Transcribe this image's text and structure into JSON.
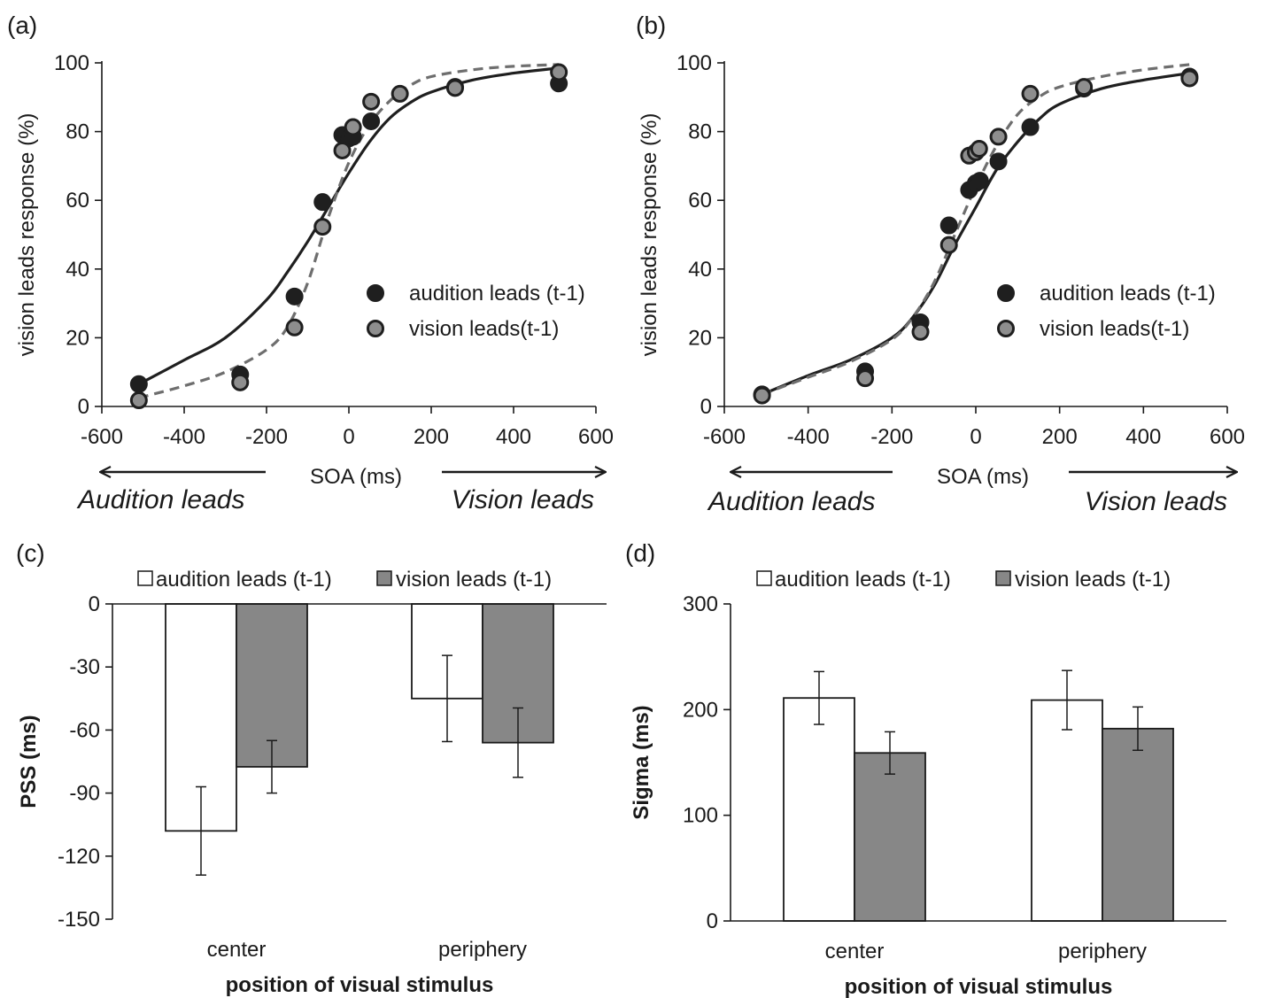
{
  "chart_data": [
    {
      "panel": "(a)",
      "type": "scatter",
      "xlabel": "SOA  (ms)",
      "ylabel": "vision  leads  response  (%)",
      "xlim": [
        -600,
        600
      ],
      "ylim": [
        0,
        100
      ],
      "xticks": [
        "-600",
        "-400",
        "-200",
        "0",
        "200",
        "400",
        "600"
      ],
      "yticks": [
        "0",
        "20",
        "40",
        "60",
        "80",
        "100"
      ],
      "direction_left": "Audition leads",
      "direction_right": "Vision leads",
      "legend_position": "right",
      "series": [
        {
          "name": "audition leads (t-1)",
          "color": "#222222",
          "fit_style": "solid",
          "points": [
            [
              -510,
              6.5
            ],
            [
              -264,
              9.3
            ],
            [
              -132,
              32
            ],
            [
              -64,
              59.5
            ],
            [
              -16,
              79
            ],
            [
              0,
              78
            ],
            [
              10,
              78.5
            ],
            [
              54,
              83
            ],
            [
              258,
              93
            ],
            [
              510,
              94
            ]
          ],
          "fit": [
            [
              -510,
              6.5
            ],
            [
              -400,
              13.5
            ],
            [
              -300,
              20
            ],
            [
              -200,
              31
            ],
            [
              -150,
              39
            ],
            [
              -100,
              48
            ],
            [
              -50,
              58
            ],
            [
              0,
              68
            ],
            [
              50,
              77
            ],
            [
              100,
              84
            ],
            [
              150,
              88.5
            ],
            [
              200,
              91.5
            ],
            [
              300,
              95
            ],
            [
              400,
              97
            ],
            [
              510,
              98.5
            ]
          ]
        },
        {
          "name": "vision leads(t-1)",
          "color": "#8a8a8a",
          "fit_style": "dashed",
          "points": [
            [
              -510,
              1.8
            ],
            [
              -264,
              7
            ],
            [
              -132,
              23
            ],
            [
              -64,
              52.3
            ],
            [
              -16,
              74.5
            ],
            [
              10,
              81.3
            ],
            [
              54,
              88.7
            ],
            [
              124,
              91
            ],
            [
              258,
              92.7
            ],
            [
              510,
              97.3
            ]
          ],
          "fit": [
            [
              -510,
              2.5
            ],
            [
              -400,
              6
            ],
            [
              -300,
              10
            ],
            [
              -200,
              16.5
            ],
            [
              -150,
              23
            ],
            [
              -100,
              36
            ],
            [
              -50,
              55
            ],
            [
              0,
              71
            ],
            [
              50,
              82
            ],
            [
              100,
              89
            ],
            [
              150,
              93.5
            ],
            [
              200,
              96
            ],
            [
              300,
              98
            ],
            [
              400,
              99
            ],
            [
              510,
              99.5
            ]
          ]
        }
      ]
    },
    {
      "panel": "(b)",
      "type": "scatter",
      "xlabel": "SOA  (ms)",
      "ylabel": "vision  leads  response  (%)",
      "xlim": [
        -600,
        600
      ],
      "ylim": [
        0,
        100
      ],
      "xticks": [
        "-600",
        "-400",
        "-200",
        "0",
        "200",
        "400",
        "600"
      ],
      "yticks": [
        "0",
        "20",
        "40",
        "60",
        "80",
        "100"
      ],
      "direction_left": "Audition leads",
      "direction_right": "Vision leads",
      "legend_position": "right",
      "series": [
        {
          "name": "audition leads (t-1)",
          "color": "#222222",
          "fit_style": "solid",
          "points": [
            [
              -510,
              3.5
            ],
            [
              -264,
              10.2
            ],
            [
              -132,
              24.5
            ],
            [
              -64,
              52.7
            ],
            [
              -16,
              63
            ],
            [
              0,
              65
            ],
            [
              10,
              65.7
            ],
            [
              54,
              71.3
            ],
            [
              130,
              81.3
            ],
            [
              258,
              92.5
            ],
            [
              510,
              96
            ]
          ],
          "fit": [
            [
              -510,
              3.5
            ],
            [
              -400,
              9
            ],
            [
              -300,
              13.5
            ],
            [
              -200,
              20
            ],
            [
              -150,
              26
            ],
            [
              -100,
              35
            ],
            [
              -50,
              47
            ],
            [
              0,
              58
            ],
            [
              50,
              69
            ],
            [
              100,
              77
            ],
            [
              150,
              83.5
            ],
            [
              200,
              88
            ],
            [
              300,
              92.5
            ],
            [
              400,
              95
            ],
            [
              510,
              97
            ]
          ]
        },
        {
          "name": "vision leads(t-1)",
          "color": "#8a8a8a",
          "fit_style": "dashed",
          "points": [
            [
              -510,
              3.2
            ],
            [
              -264,
              8.2
            ],
            [
              -132,
              21.7
            ],
            [
              -64,
              47
            ],
            [
              -16,
              73
            ],
            [
              0,
              74
            ],
            [
              8,
              75
            ],
            [
              54,
              78.5
            ],
            [
              130,
              91
            ],
            [
              258,
              93
            ],
            [
              510,
              95.5
            ]
          ],
          "fit": [
            [
              -510,
              3.5
            ],
            [
              -400,
              8.5
            ],
            [
              -300,
              13
            ],
            [
              -200,
              19.5
            ],
            [
              -150,
              26
            ],
            [
              -100,
              36
            ],
            [
              -50,
              50
            ],
            [
              0,
              64
            ],
            [
              50,
              76
            ],
            [
              100,
              85
            ],
            [
              150,
              90
            ],
            [
              200,
              93
            ],
            [
              300,
              96
            ],
            [
              400,
              98
            ],
            [
              510,
              99.5
            ]
          ]
        }
      ]
    },
    {
      "panel": "(c)",
      "type": "bar",
      "xlabel": "position  of  visual  stimulus",
      "ylabel": "PSS  (ms)",
      "categories": [
        "center",
        "periphery"
      ],
      "ylim": [
        -150,
        0
      ],
      "yticks": [
        "0",
        "-30",
        "-60",
        "-90",
        "-120",
        "-150"
      ],
      "legend_position": "top",
      "series": [
        {
          "name": "audition leads (t-1)",
          "color": "#ffffff",
          "values": [
            -108,
            -45
          ],
          "errors": [
            21,
            20.5
          ]
        },
        {
          "name": "vision leads (t-1)",
          "color": "#878787",
          "values": [
            -77.5,
            -66
          ],
          "errors": [
            12.5,
            16.5
          ]
        }
      ]
    },
    {
      "panel": "(d)",
      "type": "bar",
      "xlabel": "position  of  visual  stimulus",
      "ylabel": "Sigma  (ms)",
      "categories": [
        "center",
        "periphery"
      ],
      "ylim": [
        0,
        300
      ],
      "yticks": [
        "0",
        "100",
        "200",
        "300"
      ],
      "legend_position": "top",
      "series": [
        {
          "name": "audition leads (t-1)",
          "color": "#ffffff",
          "values": [
            211,
            209
          ],
          "errors": [
            25,
            28
          ]
        },
        {
          "name": "vision leads (t-1)",
          "color": "#878787",
          "values": [
            159,
            182
          ],
          "errors": [
            20,
            20.5
          ]
        }
      ]
    }
  ]
}
